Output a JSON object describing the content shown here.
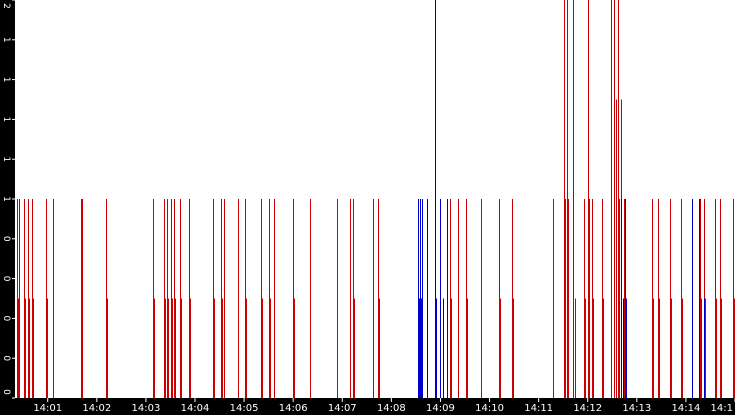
{
  "chart_data": {
    "type": "bar",
    "title": "",
    "xlabel": "",
    "ylabel": "",
    "y_tick_labels": [
      "0",
      "0",
      "0",
      "0",
      "0",
      "1",
      "1",
      "1",
      "1",
      "1",
      "2"
    ],
    "x_tick_labels": [
      "14:01",
      "14:02",
      "14:03",
      "14:04",
      "14:05",
      "14:06",
      "14:07",
      "14:08",
      "14:09",
      "14:10",
      "14:11",
      "14:12",
      "14:13",
      "14:14",
      "14:1"
    ],
    "x_range": [
      "14:00:20",
      "14:15:00"
    ],
    "ylim": [
      0,
      2
    ],
    "grid": false,
    "background": "#000000",
    "plot_background": "#ffffff",
    "series": [
      {
        "color": "#cc0000",
        "x": [
          "14:00:23",
          "14:00:24",
          "14:00:25",
          "14:00:31",
          "14:00:32",
          "14:00:36",
          "14:00:37",
          "14:00:41",
          "14:00:42",
          "14:00:58",
          "14:00:59",
          "14:01:06",
          "14:01:07",
          "14:01:41",
          "14:01:42",
          "14:02:11",
          "14:02:12",
          "14:03:09",
          "14:03:10",
          "14:03:22",
          "14:03:23",
          "14:03:26",
          "14:03:27",
          "14:03:31",
          "14:03:32",
          "14:03:34",
          "14:03:35",
          "14:03:42",
          "14:03:43",
          "14:03:53",
          "14:03:54",
          "14:04:22",
          "14:04:23",
          "14:04:32",
          "14:04:33",
          "14:04:35",
          "14:04:36",
          "14:04:52",
          "14:04:53",
          "14:05:01",
          "14:05:02",
          "14:05:21",
          "14:05:22",
          "14:05:31",
          "14:05:32",
          "14:05:36",
          "14:05:37",
          "14:06:00",
          "14:06:01",
          "14:06:20",
          "14:06:21",
          "14:06:53",
          "14:06:54",
          "14:07:09",
          "14:07:10",
          "14:07:13",
          "14:07:14",
          "14:07:37",
          "14:07:38",
          "14:07:44",
          "14:07:45",
          "14:09:12",
          "14:09:13",
          "14:09:21",
          "14:09:22",
          "14:09:31",
          "14:09:32",
          "14:09:49",
          "14:09:50",
          "14:10:12",
          "14:10:13",
          "14:10:28",
          "14:10:29",
          "14:11:17",
          "14:11:18",
          "14:11:31",
          "14:11:32",
          "14:11:35",
          "14:11:36",
          "14:11:42",
          "14:11:44",
          "14:11:55",
          "14:11:57",
          "14:12:00",
          "14:12:01",
          "14:12:05",
          "14:12:06",
          "14:12:18",
          "14:12:19",
          "14:12:28",
          "14:12:29",
          "14:12:32",
          "14:12:34",
          "14:12:37",
          "14:12:38",
          "14:12:41",
          "14:12:44",
          "14:13:19",
          "14:13:20",
          "14:13:26",
          "14:13:27",
          "14:13:41",
          "14:13:42",
          "14:13:54",
          "14:13:55",
          "14:14:17",
          "14:14:18",
          "14:14:22",
          "14:14:23",
          "14:14:36",
          "14:14:37",
          "14:14:42",
          "14:14:43",
          "14:14:58",
          "14:14:59"
        ],
        "values": [
          1,
          0.5,
          1,
          1,
          0.5,
          1,
          0.5,
          1,
          0.5,
          1,
          0.5,
          1,
          0.5,
          1,
          1,
          1,
          0.5,
          1,
          0.5,
          1,
          0.5,
          1,
          0.5,
          1,
          0.5,
          1,
          0.5,
          1,
          0.5,
          1,
          0.5,
          1,
          0.5,
          1,
          0.5,
          1,
          0.5,
          1,
          0.5,
          1,
          0.5,
          1,
          0.5,
          1,
          0.5,
          1,
          0.5,
          1,
          0.5,
          1,
          0.5,
          1,
          0.5,
          1,
          0.5,
          1,
          0.5,
          1,
          0.5,
          1,
          0.5,
          1,
          0.5,
          1,
          0.5,
          1,
          0.5,
          1,
          0.5,
          1,
          0.5,
          1,
          0.5,
          1,
          0.5,
          2,
          1,
          2,
          1,
          2,
          0.5,
          1,
          0.5,
          2,
          1,
          1,
          0.5,
          1,
          0.5,
          2,
          1,
          2,
          1.5,
          2,
          1,
          1.5,
          1,
          1,
          0.5,
          1,
          0.5,
          1,
          0.5,
          1,
          0.5,
          1,
          0.5,
          1,
          0.5,
          1,
          0.5,
          1,
          0.5,
          1,
          0.5
        ]
      },
      {
        "color": "#0000cc",
        "x": [
          "14:08:33",
          "14:08:34",
          "14:08:35",
          "14:08:36",
          "14:08:37",
          "14:08:38",
          "14:08:44",
          "14:08:53",
          "14:08:54",
          "14:08:59",
          "14:09:03",
          "14:09:08",
          "14:12:41",
          "14:12:43",
          "14:12:45",
          "14:12:47",
          "14:14:07",
          "14:14:08",
          "14:14:16",
          "14:14:22"
        ],
        "values": [
          1,
          0.5,
          1,
          0.5,
          1,
          0.5,
          1,
          2,
          0.5,
          1,
          0.5,
          1,
          1,
          0.5,
          1,
          0.5,
          1,
          0.5,
          1,
          0.5
        ]
      }
    ]
  }
}
